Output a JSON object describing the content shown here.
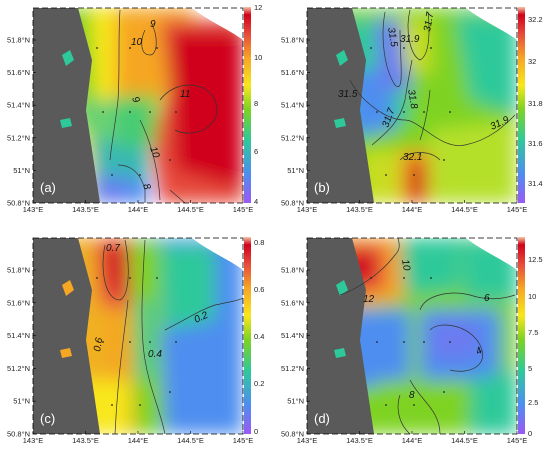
{
  "panels": [
    {
      "label": "(a)",
      "colorbar": {
        "ticks": [
          "12",
          "10",
          "8",
          "6",
          "4"
        ]
      },
      "contour_labels": [
        "10",
        "9",
        "9",
        "11",
        "10",
        "8"
      ]
    },
    {
      "label": "(b)",
      "colorbar": {
        "ticks": [
          "32.2",
          "32",
          "31.8",
          "31.6",
          "31.4"
        ]
      },
      "contour_labels": [
        "31.5",
        "31.9",
        "31.7",
        "31.5",
        "31.8",
        "31.7",
        "31.9",
        "32.1"
      ]
    },
    {
      "label": "(c)",
      "colorbar": {
        "ticks": [
          "0.8",
          "0.6",
          "0.4",
          "0.2",
          "0"
        ]
      },
      "contour_labels": [
        "0.7",
        "0.6",
        "0.4",
        "0.2"
      ]
    },
    {
      "label": "(d)",
      "colorbar": {
        "ticks": [
          "12.5",
          "10",
          "7.5",
          "5",
          "2.5",
          "0"
        ]
      },
      "contour_labels": [
        "12",
        "10",
        "6",
        "4",
        "8"
      ]
    }
  ],
  "axes": {
    "lat_ticks": [
      "51.8°N",
      "51.6°N",
      "51.4°N",
      "51.2°N",
      "51°N",
      "50.8°N"
    ],
    "lon_ticks": [
      "143°E",
      "143.5°E",
      "144°E",
      "144.5°E",
      "145°E"
    ]
  },
  "colors": {
    "land": "#5a5a5a",
    "colormap": [
      "#9b59f5",
      "#4d8ef0",
      "#2ec99a",
      "#7ed321",
      "#f8e71c",
      "#f5a623",
      "#e74c3c",
      "#d0021b",
      "#f5c6a5"
    ]
  }
}
